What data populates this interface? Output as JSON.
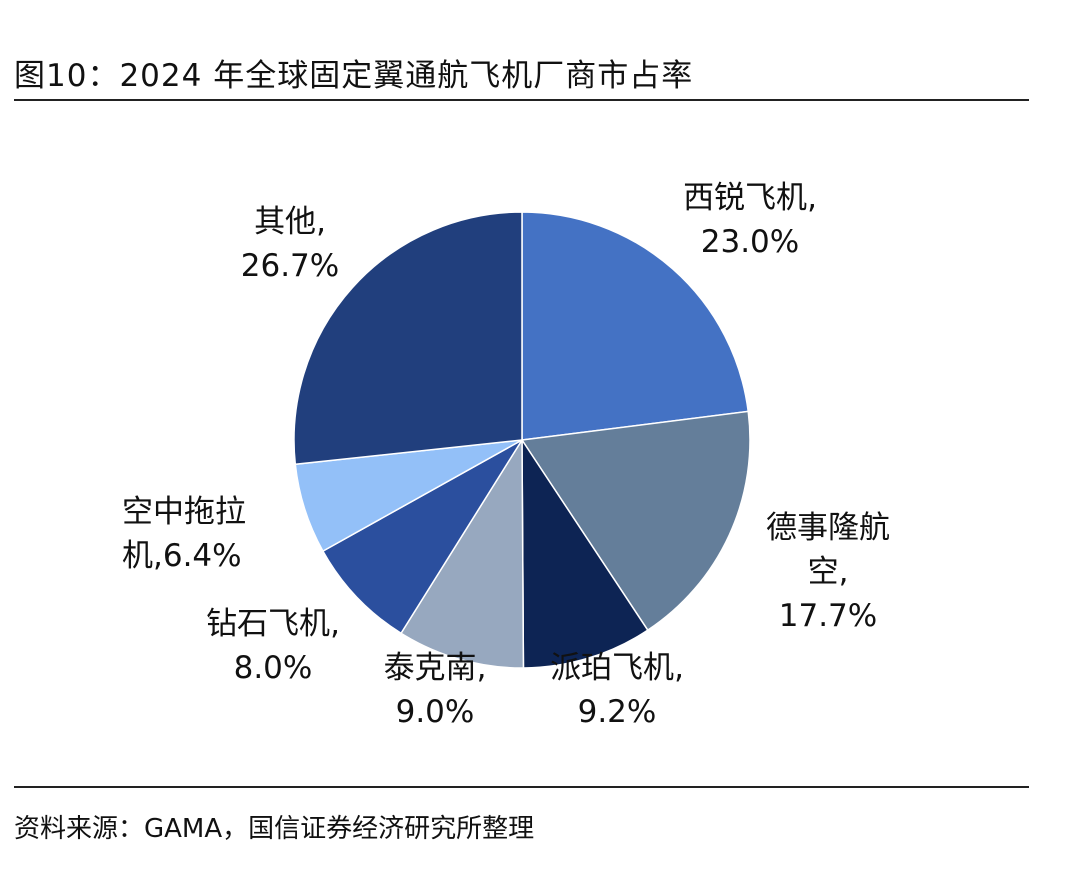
{
  "title": "图10：2024 年全球固定翼通航飞机厂商市占率",
  "source": "资料来源：GAMA，国信证券经济研究所整理",
  "chart_data": {
    "type": "pie",
    "title": "2024 年全球固定翼通航飞机厂商市占率",
    "start": "12 o'clock, clockwise",
    "slices": [
      {
        "name": "西锐飞机",
        "value": 23.0,
        "label": "23.0%",
        "color": "#4472C4"
      },
      {
        "name": "德事隆航空",
        "value": 17.7,
        "label": "17.7%",
        "color": "#647E9A"
      },
      {
        "name": "派珀飞机",
        "value": 9.2,
        "label": "9.2%",
        "color": "#0D2454"
      },
      {
        "name": "泰克南",
        "value": 9.0,
        "label": "9.0%",
        "color": "#97A8BF"
      },
      {
        "name": "钻石飞机",
        "value": 8.0,
        "label": "8.0%",
        "color": "#2B4F9E"
      },
      {
        "name": "空中拖拉机",
        "value": 6.4,
        "label": "6.4%",
        "color": "#93C0F8"
      },
      {
        "name": "其他",
        "value": 26.7,
        "label": "26.7%",
        "color": "#213F7D"
      }
    ]
  }
}
